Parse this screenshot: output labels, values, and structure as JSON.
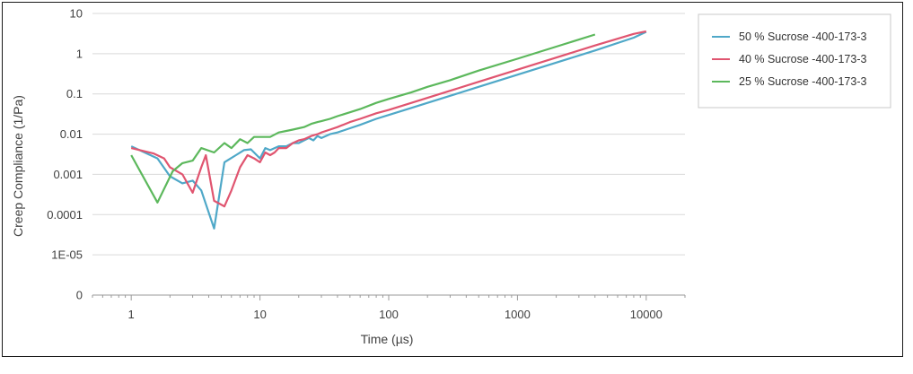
{
  "chart_data": {
    "type": "line",
    "xlabel": "Time (µs)",
    "ylabel": "Creep Compliance (1/Pa)",
    "x_scale": "log",
    "y_scale": "log",
    "xlim": [
      0.5,
      20000
    ],
    "ylim": [
      1e-06,
      10
    ],
    "x_ticks": [
      {
        "value": 1,
        "label": "1"
      },
      {
        "value": 10,
        "label": "10"
      },
      {
        "value": 100,
        "label": "100"
      },
      {
        "value": 1000,
        "label": "1000"
      },
      {
        "value": 10000,
        "label": "10000"
      }
    ],
    "y_ticks": [
      {
        "value": 1e-06,
        "label": "0"
      },
      {
        "value": 1e-05,
        "label": "1E-05"
      },
      {
        "value": 0.0001,
        "label": "0.0001"
      },
      {
        "value": 0.001,
        "label": "0.001"
      },
      {
        "value": 0.01,
        "label": "0.01"
      },
      {
        "value": 0.1,
        "label": "0.1"
      },
      {
        "value": 1,
        "label": "1"
      },
      {
        "value": 10,
        "label": "10"
      }
    ],
    "grid": {
      "horizontal": true,
      "vertical": false
    },
    "legend_position": "right",
    "series": [
      {
        "name": "50 % Sucrose -400-173-3",
        "color": "#4fa8c8",
        "x": [
          1,
          1.6,
          2,
          2.5,
          3,
          3.5,
          4.4,
          5.3,
          6.5,
          7.5,
          8.5,
          10,
          11,
          12,
          13,
          14,
          16,
          18,
          20,
          22,
          24,
          26,
          28,
          30,
          35,
          40,
          50,
          60,
          80,
          100,
          150,
          200,
          300,
          500,
          1000,
          2000,
          4000,
          8000,
          10000
        ],
        "y": [
          0.005,
          0.0025,
          0.0009,
          0.0006,
          0.0007,
          0.0004,
          4.5e-05,
          0.002,
          0.003,
          0.004,
          0.0042,
          0.0025,
          0.0045,
          0.004,
          0.0045,
          0.005,
          0.005,
          0.006,
          0.006,
          0.007,
          0.008,
          0.007,
          0.009,
          0.008,
          0.01,
          0.011,
          0.014,
          0.017,
          0.024,
          0.03,
          0.045,
          0.06,
          0.09,
          0.15,
          0.3,
          0.6,
          1.2,
          2.5,
          3.5
        ]
      },
      {
        "name": "40 % Sucrose -400-173-3",
        "color": "#e05570",
        "x": [
          1,
          1.5,
          1.8,
          2,
          2.5,
          3,
          3.5,
          3.8,
          4.4,
          5.3,
          6,
          7,
          8,
          9,
          10,
          11,
          12,
          13,
          14,
          16,
          18,
          20,
          22,
          25,
          28,
          30,
          35,
          40,
          50,
          60,
          80,
          100,
          150,
          200,
          300,
          500,
          1000,
          2000,
          4000,
          8000,
          10000
        ],
        "y": [
          0.0045,
          0.0033,
          0.0025,
          0.0015,
          0.001,
          0.00035,
          0.0015,
          0.003,
          0.00022,
          0.00016,
          0.0004,
          0.0015,
          0.003,
          0.0025,
          0.002,
          0.0035,
          0.003,
          0.0035,
          0.0045,
          0.0045,
          0.006,
          0.007,
          0.0075,
          0.009,
          0.01,
          0.011,
          0.013,
          0.015,
          0.02,
          0.024,
          0.033,
          0.04,
          0.06,
          0.08,
          0.12,
          0.2,
          0.4,
          0.8,
          1.6,
          3.1,
          3.6
        ]
      },
      {
        "name": "25 % Sucrose -400-173-3",
        "color": "#5cb85c",
        "x": [
          1,
          1.6,
          2.1,
          2.5,
          3,
          3.5,
          4.4,
          5.3,
          6,
          7,
          8,
          9,
          10,
          11,
          12,
          14,
          16,
          18,
          20,
          22,
          25,
          28,
          30,
          35,
          40,
          50,
          60,
          80,
          100,
          150,
          200,
          300,
          500,
          1000,
          2000,
          4000
        ],
        "y": [
          0.003,
          0.0002,
          0.0012,
          0.0019,
          0.0022,
          0.0045,
          0.0035,
          0.006,
          0.0045,
          0.0075,
          0.006,
          0.0085,
          0.0085,
          0.0085,
          0.0085,
          0.011,
          0.012,
          0.013,
          0.014,
          0.015,
          0.018,
          0.02,
          0.021,
          0.024,
          0.028,
          0.035,
          0.042,
          0.06,
          0.075,
          0.11,
          0.15,
          0.22,
          0.38,
          0.75,
          1.5,
          3
        ]
      }
    ]
  }
}
